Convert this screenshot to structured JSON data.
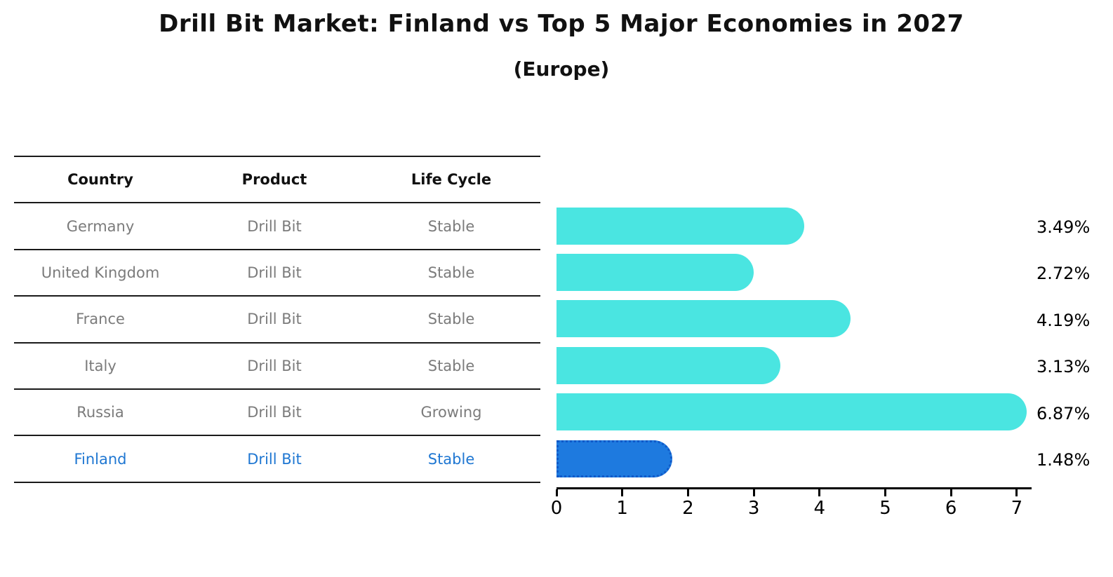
{
  "title": "Drill Bit Market: Finland vs Top 5 Major Economies in 2027",
  "subtitle": "(Europe)",
  "colors": {
    "bar": "#4ae5e1",
    "highlight_bar": "#1e7adf",
    "highlight_bar_border": "#1059c8",
    "highlight_text": "#1f77d2",
    "cell_text": "#7b7b7b",
    "header_text": "#111111",
    "axis": "#000000"
  },
  "table": {
    "headers": [
      "Country",
      "Product",
      "Life Cycle"
    ],
    "rows": [
      {
        "country": "Germany",
        "product": "Drill Bit",
        "life_cycle": "Stable",
        "highlight": false
      },
      {
        "country": "United Kingdom",
        "product": "Drill Bit",
        "life_cycle": "Stable",
        "highlight": false
      },
      {
        "country": "France",
        "product": "Drill Bit",
        "life_cycle": "Stable",
        "highlight": false
      },
      {
        "country": "Italy",
        "product": "Drill Bit",
        "life_cycle": "Stable",
        "highlight": false
      },
      {
        "country": "Russia",
        "product": "Drill Bit",
        "life_cycle": "Growing",
        "highlight": false
      },
      {
        "country": "Finland",
        "product": "Drill Bit",
        "life_cycle": "Stable",
        "highlight": true
      }
    ]
  },
  "chart_data": {
    "type": "bar",
    "orientation": "horizontal",
    "title": "Drill Bit Market: Finland vs Top 5 Major Economies in 2027",
    "subtitle": "(Europe)",
    "categories": [
      "Germany",
      "United Kingdom",
      "France",
      "Italy",
      "Russia",
      "Finland"
    ],
    "values": [
      3.49,
      2.72,
      4.19,
      3.13,
      6.87,
      1.48
    ],
    "value_labels": [
      "3.49%",
      "2.72%",
      "4.19%",
      "3.13%",
      "6.87%",
      "1.48%"
    ],
    "highlight_index": 5,
    "xlabel": "",
    "ylabel": "",
    "xlim": [
      0,
      7.2
    ],
    "x_ticks": [
      0,
      1,
      2,
      3,
      4,
      5,
      6,
      7
    ],
    "grid": false,
    "legend": false
  }
}
